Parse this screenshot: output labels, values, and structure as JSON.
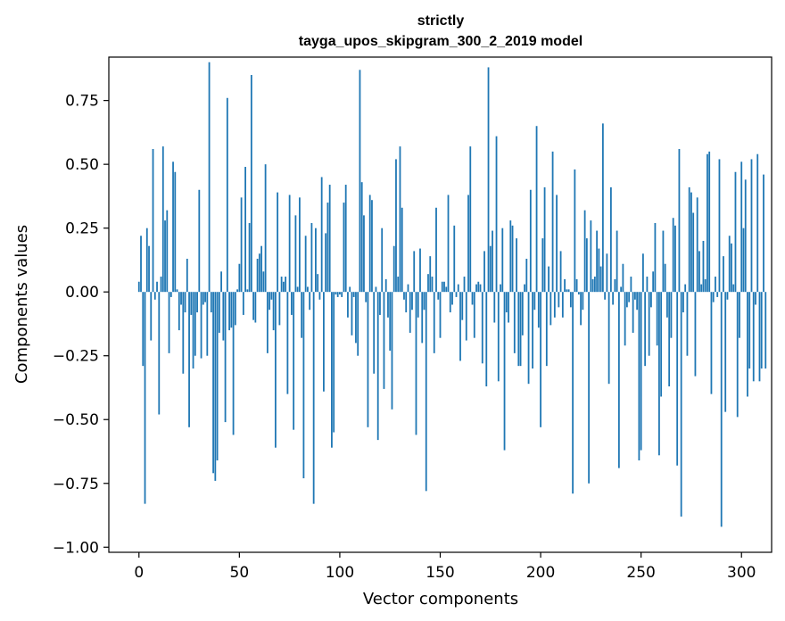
{
  "chart_data": {
    "type": "bar",
    "title": "strictly",
    "subtitle": "tayga_upos_skipgram_300_2_2019 model",
    "xlabel": "Vector components",
    "ylabel": "Components values",
    "xlim": [
      -15,
      315
    ],
    "ylim": [
      -1.02,
      0.92
    ],
    "xticks": [
      0,
      50,
      100,
      150,
      200,
      250,
      300
    ],
    "xtick_labels": [
      "0",
      "50",
      "100",
      "150",
      "200",
      "250",
      "300"
    ],
    "yticks": [
      -1.0,
      -0.75,
      -0.5,
      -0.25,
      0.0,
      0.25,
      0.5,
      0.75
    ],
    "ytick_labels": [
      "−1.00",
      "−0.75",
      "−0.50",
      "−0.25",
      "0.00",
      "0.25",
      "0.50",
      "0.75"
    ],
    "bar_color": "#1f77b4",
    "grid": false,
    "series": [
      {
        "x_start": 0,
        "values": [
          0.04,
          0.22,
          -0.29,
          -0.83,
          0.25,
          0.18,
          -0.19,
          0.56,
          -0.03,
          0.04,
          -0.48,
          0.06,
          0.57,
          0.28,
          0.32,
          -0.24,
          -0.02,
          0.51,
          0.47,
          0.01,
          -0.15,
          -0.05,
          -0.32,
          -0.08,
          0.13,
          -0.53,
          -0.09,
          -0.3,
          -0.25,
          -0.08,
          0.4,
          -0.26,
          -0.05,
          -0.04,
          -0.25,
          0.9,
          -0.08,
          -0.71,
          -0.74,
          -0.66,
          -0.16,
          0.08,
          -0.19,
          -0.51,
          0.76,
          -0.15,
          -0.14,
          -0.56,
          -0.13,
          0.01,
          0.11,
          0.37,
          -0.09,
          0.49,
          0.01,
          0.27,
          0.85,
          -0.11,
          -0.12,
          0.13,
          0.15,
          0.18,
          0.08,
          0.5,
          -0.24,
          -0.07,
          -0.03,
          -0.15,
          -0.61,
          0.39,
          -0.13,
          0.06,
          0.04,
          0.06,
          -0.4,
          0.38,
          -0.09,
          -0.54,
          0.3,
          0.02,
          0.37,
          -0.18,
          -0.73,
          0.22,
          0.02,
          -0.07,
          0.27,
          -0.83,
          0.25,
          0.07,
          -0.03,
          0.45,
          -0.39,
          0.23,
          0.35,
          0.42,
          -0.61,
          -0.55,
          -0.01,
          -0.02,
          -0.01,
          -0.02,
          0.35,
          0.42,
          -0.1,
          0.02,
          -0.17,
          -0.02,
          -0.2,
          -0.25,
          0.87,
          0.43,
          0.3,
          -0.04,
          -0.53,
          0.38,
          0.36,
          -0.32,
          0.02,
          -0.58,
          -0.09,
          0.25,
          -0.38,
          0.05,
          -0.1,
          -0.23,
          -0.46,
          0.18,
          0.52,
          0.06,
          0.57,
          0.33,
          -0.03,
          -0.08,
          0.03,
          -0.16,
          -0.07,
          0.16,
          -0.56,
          -0.1,
          0.17,
          -0.2,
          -0.07,
          -0.78,
          0.07,
          0.14,
          0.06,
          -0.24,
          0.33,
          -0.03,
          -0.18,
          0.04,
          0.04,
          0.02,
          0.38,
          -0.08,
          -0.05,
          0.26,
          -0.02,
          0.03,
          -0.27,
          -0.11,
          0.06,
          -0.19,
          0.38,
          0.57,
          -0.05,
          -0.18,
          0.03,
          0.04,
          0.03,
          -0.28,
          0.16,
          -0.37,
          0.88,
          0.18,
          0.24,
          -0.12,
          0.61,
          -0.35,
          0.03,
          0.25,
          -0.62,
          -0.08,
          -0.12,
          0.28,
          0.26,
          -0.24,
          0.21,
          -0.29,
          -0.29,
          -0.17,
          0.03,
          0.13,
          -0.36,
          0.4,
          -0.3,
          -0.07,
          0.65,
          -0.14,
          -0.53,
          0.21,
          0.41,
          -0.29,
          0.1,
          -0.13,
          0.55,
          -0.1,
          0.38,
          -0.06,
          0.16,
          -0.1,
          0.05,
          0.01,
          0.01,
          -0.06,
          -0.79,
          0.48,
          0.05,
          -0.01,
          -0.13,
          -0.07,
          0.32,
          0.21,
          -0.75,
          0.28,
          0.05,
          0.06,
          0.24,
          0.17,
          0.1,
          0.66,
          -0.03,
          0.15,
          -0.36,
          0.41,
          -0.05,
          0.05,
          0.24,
          -0.69,
          0.02,
          0.11,
          -0.21,
          -0.06,
          -0.04,
          0.06,
          -0.16,
          -0.03,
          -0.07,
          -0.66,
          -0.62,
          0.15,
          -0.29,
          0.06,
          -0.25,
          -0.06,
          0.08,
          0.27,
          -0.21,
          -0.64,
          -0.41,
          0.24,
          0.11,
          -0.1,
          -0.37,
          -0.18,
          0.29,
          0.26,
          -0.68,
          0.56,
          -0.88,
          -0.08,
          0.03,
          -0.25,
          0.41,
          0.39,
          0.31,
          -0.33,
          0.37,
          0.16,
          0.03,
          0.2,
          0.05,
          0.54,
          0.55,
          -0.4,
          -0.04,
          0.06,
          -0.02,
          0.52,
          -0.92,
          0.14,
          -0.47,
          -0.03,
          0.22,
          0.19,
          0.03,
          0.47,
          -0.49,
          -0.18,
          0.51,
          0.25,
          0.44,
          -0.41,
          -0.3,
          0.52,
          -0.35,
          -0.05,
          0.54,
          -0.35,
          -0.3,
          0.46,
          -0.3
        ]
      }
    ]
  }
}
